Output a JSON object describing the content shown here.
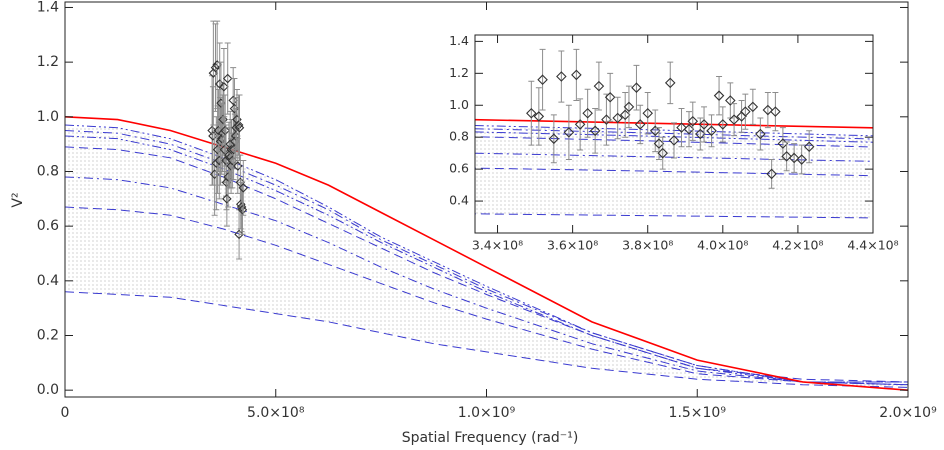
{
  "chart_data": {
    "type": "line",
    "xlabel": "Spatial Frequency (rad⁻¹)",
    "ylabel": "V²",
    "xlim": [
      0,
      2000000000
    ],
    "ylim": [
      -0.025,
      1.42
    ],
    "xticks": [
      0,
      {
        "value": 500000000,
        "label": "5.0×10⁸"
      },
      {
        "value": 1000000000,
        "label": "1.0×10⁹"
      },
      {
        "value": 1500000000,
        "label": "1.5×10⁹"
      },
      {
        "value": 2000000000,
        "label": "2.0×10⁹"
      }
    ],
    "yticks": [
      {
        "value": 0,
        "label": "0.0"
      },
      0.2,
      0.4,
      0.6,
      0.8,
      {
        "value": 1,
        "label": "1.0"
      },
      1.2,
      1.4
    ],
    "shade_color": "#8a8a8a",
    "models": {
      "x": [
        0,
        125000000,
        250000000,
        375000000,
        500000000,
        625000000,
        750000000,
        875000000,
        1000000000,
        1250000000,
        1500000000,
        1750000000,
        2000000000
      ],
      "series": [
        {
          "color": "#ff0000",
          "style": "solid",
          "values": [
            1.0,
            0.99,
            0.95,
            0.89,
            0.83,
            0.75,
            0.65,
            0.55,
            0.45,
            0.25,
            0.11,
            0.03,
            0.0
          ]
        },
        {
          "color": "#3a3ad0",
          "style": "dash-dot-dot",
          "values": [
            0.97,
            0.96,
            0.92,
            0.85,
            0.77,
            0.67,
            0.56,
            0.47,
            0.38,
            0.21,
            0.09,
            0.03,
            0.02
          ]
        },
        {
          "color": "#3a3ad0",
          "style": "dash-dot",
          "values": [
            0.95,
            0.94,
            0.9,
            0.83,
            0.75,
            0.66,
            0.55,
            0.46,
            0.37,
            0.21,
            0.09,
            0.03,
            0.03
          ]
        },
        {
          "color": "#3a3ad0",
          "style": "dash-dot-dot",
          "values": [
            0.93,
            0.92,
            0.88,
            0.81,
            0.73,
            0.64,
            0.54,
            0.45,
            0.36,
            0.2,
            0.08,
            0.03,
            0.02
          ]
        },
        {
          "color": "#3a3ad0",
          "style": "dashed",
          "values": [
            0.89,
            0.88,
            0.85,
            0.78,
            0.7,
            0.61,
            0.52,
            0.43,
            0.35,
            0.2,
            0.08,
            0.04,
            0.03
          ]
        },
        {
          "color": "#3a3ad0",
          "style": "dash-dot",
          "values": [
            0.78,
            0.77,
            0.74,
            0.68,
            0.62,
            0.54,
            0.45,
            0.37,
            0.3,
            0.17,
            0.07,
            0.03,
            0.03
          ]
        },
        {
          "color": "#3a3ad0",
          "style": "dashed",
          "values": [
            0.67,
            0.66,
            0.64,
            0.59,
            0.53,
            0.46,
            0.39,
            0.32,
            0.26,
            0.15,
            0.06,
            0.03,
            0.02
          ]
        },
        {
          "color": "#3a3ad0",
          "style": "dashed",
          "values": [
            0.36,
            0.35,
            0.34,
            0.31,
            0.28,
            0.25,
            0.21,
            0.17,
            0.14,
            0.08,
            0.04,
            0.02,
            0.01
          ]
        }
      ]
    },
    "points": {
      "color": "#333333",
      "error_color": "#8c8c8c",
      "x": [
        349000000,
        351000000,
        352000000,
        355000000,
        357000000,
        359000000,
        361000000,
        362000000,
        364000000,
        366000000,
        367000000,
        369000000,
        370000000,
        372000000,
        374000000,
        375000000,
        377000000,
        378000000,
        380000000,
        382000000,
        383000000,
        384000000,
        386000000,
        387000000,
        389000000,
        391000000,
        392000000,
        394000000,
        395000000,
        397000000,
        399000000,
        400000000,
        402000000,
        403000000,
        405000000,
        406000000,
        408000000,
        410000000,
        412000000,
        413000000,
        414000000,
        416000000,
        417000000,
        419000000,
        421000000,
        423000000
      ],
      "values": [
        0.95,
        0.93,
        1.16,
        0.79,
        1.18,
        0.83,
        1.19,
        0.88,
        0.95,
        0.84,
        1.12,
        0.91,
        1.05,
        0.92,
        0.94,
        0.99,
        1.11,
        0.88,
        0.95,
        0.84,
        0.76,
        0.7,
        1.14,
        0.78,
        0.86,
        0.85,
        0.9,
        0.82,
        0.88,
        0.84,
        1.06,
        0.88,
        1.03,
        0.91,
        0.93,
        0.96,
        0.99,
        0.82,
        0.97,
        0.57,
        0.96,
        0.76,
        0.68,
        0.67,
        0.66,
        0.74
      ],
      "errors": [
        0.2,
        0.18,
        0.19,
        0.15,
        0.16,
        0.17,
        0.16,
        0.16,
        0.15,
        0.14,
        0.15,
        0.16,
        0.15,
        0.13,
        0.14,
        0.13,
        0.14,
        0.12,
        0.13,
        0.13,
        0.1,
        0.1,
        0.13,
        0.11,
        0.12,
        0.11,
        0.12,
        0.1,
        0.11,
        0.1,
        0.12,
        0.11,
        0.11,
        0.1,
        0.1,
        0.11,
        0.11,
        0.1,
        0.11,
        0.09,
        0.12,
        0.1,
        0.09,
        0.09,
        0.09,
        0.1
      ]
    },
    "inset": {
      "xlim": [
        334000000,
        440000000
      ],
      "ylim": [
        0.2,
        1.44
      ],
      "xticks": [
        {
          "value": 340000000,
          "label": "3.4×10⁸"
        },
        {
          "value": 360000000,
          "label": "3.6×10⁸"
        },
        {
          "value": 380000000,
          "label": "3.8×10⁸"
        },
        {
          "value": 400000000,
          "label": "4.0×10⁸"
        },
        {
          "value": 420000000,
          "label": "4.2×10⁸"
        },
        {
          "value": 440000000,
          "label": "4.4×10⁸"
        }
      ],
      "yticks": [
        0.4,
        0.6,
        0.8,
        {
          "value": 1,
          "label": "1.0"
        },
        1.2,
        1.4
      ]
    }
  }
}
